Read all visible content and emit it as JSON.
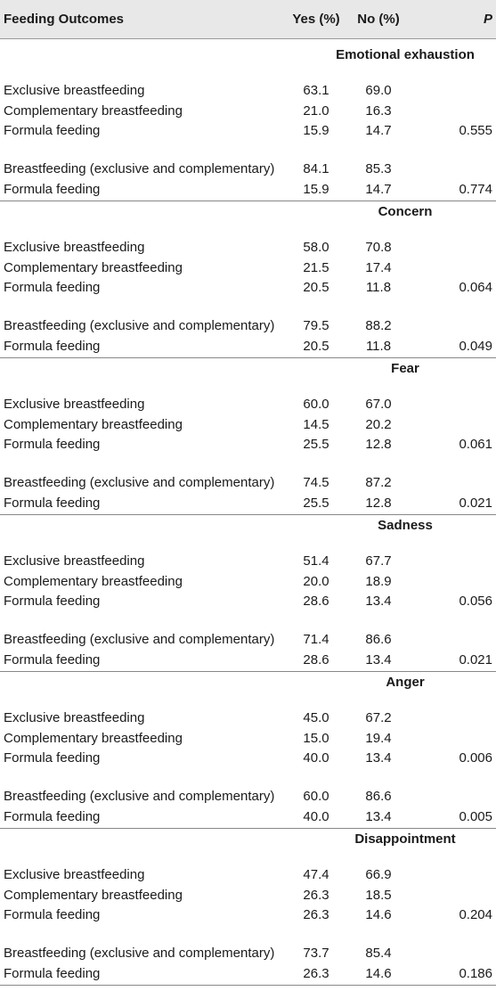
{
  "header": [
    "Feeding Outcomes",
    "Yes (%)",
    "No (%)",
    "P"
  ],
  "sections": [
    {
      "title": "Emotional exhaustion",
      "groups": [
        [
          [
            "Exclusive breastfeeding",
            "63.1",
            "69.0"
          ],
          [
            "Complementary breastfeeding",
            "21.0",
            "16.3"
          ],
          [
            "Formula feeding",
            "15.9",
            "14.7",
            "0.555"
          ]
        ],
        [
          [
            "Breastfeeding (exclusive and complementary)",
            "84.1",
            "85.3"
          ],
          [
            "Formula feeding",
            "15.9",
            "14.7",
            "0.774"
          ]
        ]
      ]
    },
    {
      "title": "Concern",
      "groups": [
        [
          [
            "Exclusive breastfeeding",
            "58.0",
            "70.8"
          ],
          [
            "Complementary breastfeeding",
            "21.5",
            "17.4"
          ],
          [
            "Formula feeding",
            "20.5",
            "11.8",
            "0.064"
          ]
        ],
        [
          [
            "Breastfeeding (exclusive and complementary)",
            "79.5",
            "88.2"
          ],
          [
            "Formula feeding",
            "20.5",
            "11.8",
            "0.049"
          ]
        ]
      ]
    },
    {
      "title": "Fear",
      "groups": [
        [
          [
            "Exclusive breastfeeding",
            "60.0",
            "67.0"
          ],
          [
            "Complementary breastfeeding",
            "14.5",
            "20.2"
          ],
          [
            "Formula feeding",
            "25.5",
            "12.8",
            "0.061"
          ]
        ],
        [
          [
            "Breastfeeding (exclusive and complementary)",
            "74.5",
            "87.2"
          ],
          [
            "Formula feeding",
            "25.5",
            "12.8",
            "0.021"
          ]
        ]
      ]
    },
    {
      "title": "Sadness",
      "groups": [
        [
          [
            "Exclusive breastfeeding",
            "51.4",
            "67.7"
          ],
          [
            "Complementary breastfeeding",
            "20.0",
            "18.9"
          ],
          [
            "Formula feeding",
            "28.6",
            "13.4",
            "0.056"
          ]
        ],
        [
          [
            "Breastfeeding (exclusive and complementary)",
            "71.4",
            "86.6"
          ],
          [
            "Formula feeding",
            "28.6",
            "13.4",
            "0.021"
          ]
        ]
      ]
    },
    {
      "title": "Anger",
      "groups": [
        [
          [
            "Exclusive breastfeeding",
            "45.0",
            "67.2"
          ],
          [
            "Complementary breastfeeding",
            "15.0",
            "19.4"
          ],
          [
            "Formula feeding",
            "40.0",
            "13.4",
            "0.006"
          ]
        ],
        [
          [
            "Breastfeeding (exclusive and complementary)",
            "60.0",
            "86.6"
          ],
          [
            "Formula feeding",
            "40.0",
            "13.4",
            "0.005"
          ]
        ]
      ]
    },
    {
      "title": "Disappointment",
      "groups": [
        [
          [
            "Exclusive breastfeeding",
            "47.4",
            "66.9"
          ],
          [
            "Complementary breastfeeding",
            "26.3",
            "18.5"
          ],
          [
            "Formula feeding",
            "26.3",
            "14.6",
            "0.204"
          ]
        ],
        [
          [
            "Breastfeeding (exclusive and complementary)",
            "73.7",
            "85.4"
          ],
          [
            "Formula feeding",
            "26.3",
            "14.6",
            "0.186"
          ]
        ]
      ]
    }
  ]
}
